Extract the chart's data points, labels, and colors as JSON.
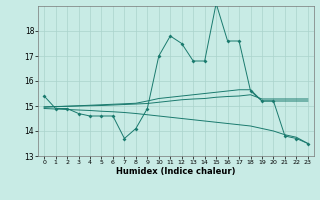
{
  "xlabel": "Humidex (Indice chaleur)",
  "bg_color": "#c8ebe5",
  "line_color": "#1a7a6e",
  "grid_color": "#aad4cc",
  "xlim": [
    -0.5,
    23.5
  ],
  "ylim": [
    13.0,
    19.0
  ],
  "yticks": [
    13,
    14,
    15,
    16,
    17,
    18
  ],
  "xticks": [
    0,
    1,
    2,
    3,
    4,
    5,
    6,
    7,
    8,
    9,
    10,
    11,
    12,
    13,
    14,
    15,
    16,
    17,
    18,
    19,
    20,
    21,
    22,
    23
  ],
  "line1_x": [
    0,
    1,
    2,
    3,
    4,
    5,
    6,
    7,
    8,
    9,
    10,
    11,
    12,
    13,
    14,
    15,
    16,
    17,
    18,
    19,
    20,
    21,
    22,
    23
  ],
  "line1_y": [
    15.4,
    14.9,
    14.9,
    14.7,
    14.6,
    14.6,
    14.6,
    13.7,
    14.1,
    14.9,
    17.0,
    17.8,
    17.5,
    16.8,
    16.8,
    19.1,
    17.6,
    17.6,
    15.6,
    15.2,
    15.2,
    13.8,
    13.7,
    13.5
  ],
  "line2_x": [
    0,
    1,
    2,
    3,
    4,
    5,
    6,
    7,
    8,
    9,
    10,
    11,
    12,
    13,
    14,
    15,
    16,
    17,
    18,
    19,
    20,
    21,
    22,
    23
  ],
  "line2_y": [
    14.95,
    14.97,
    14.99,
    15.01,
    15.03,
    15.05,
    15.07,
    15.09,
    15.11,
    15.2,
    15.3,
    15.35,
    15.4,
    15.45,
    15.5,
    15.55,
    15.6,
    15.65,
    15.65,
    15.2,
    15.2,
    15.2,
    15.2,
    15.2
  ],
  "line3_x": [
    0,
    1,
    2,
    3,
    4,
    5,
    6,
    7,
    8,
    9,
    10,
    11,
    12,
    13,
    14,
    15,
    16,
    17,
    18,
    19,
    20,
    21,
    22,
    23
  ],
  "line3_y": [
    14.9,
    14.88,
    14.86,
    14.84,
    14.82,
    14.79,
    14.77,
    14.74,
    14.7,
    14.65,
    14.6,
    14.55,
    14.5,
    14.45,
    14.4,
    14.35,
    14.3,
    14.25,
    14.2,
    14.1,
    14.0,
    13.85,
    13.75,
    13.5
  ],
  "line4_x": [
    0,
    1,
    2,
    3,
    4,
    5,
    6,
    7,
    8,
    9,
    10,
    11,
    12,
    13,
    14,
    15,
    16,
    17,
    18,
    19,
    20,
    21,
    22,
    23
  ],
  "line4_y": [
    14.97,
    14.98,
    14.99,
    15.0,
    15.01,
    15.02,
    15.04,
    15.06,
    15.08,
    15.1,
    15.15,
    15.2,
    15.25,
    15.28,
    15.3,
    15.35,
    15.38,
    15.4,
    15.45,
    15.28,
    15.28,
    15.28,
    15.28,
    15.28
  ]
}
